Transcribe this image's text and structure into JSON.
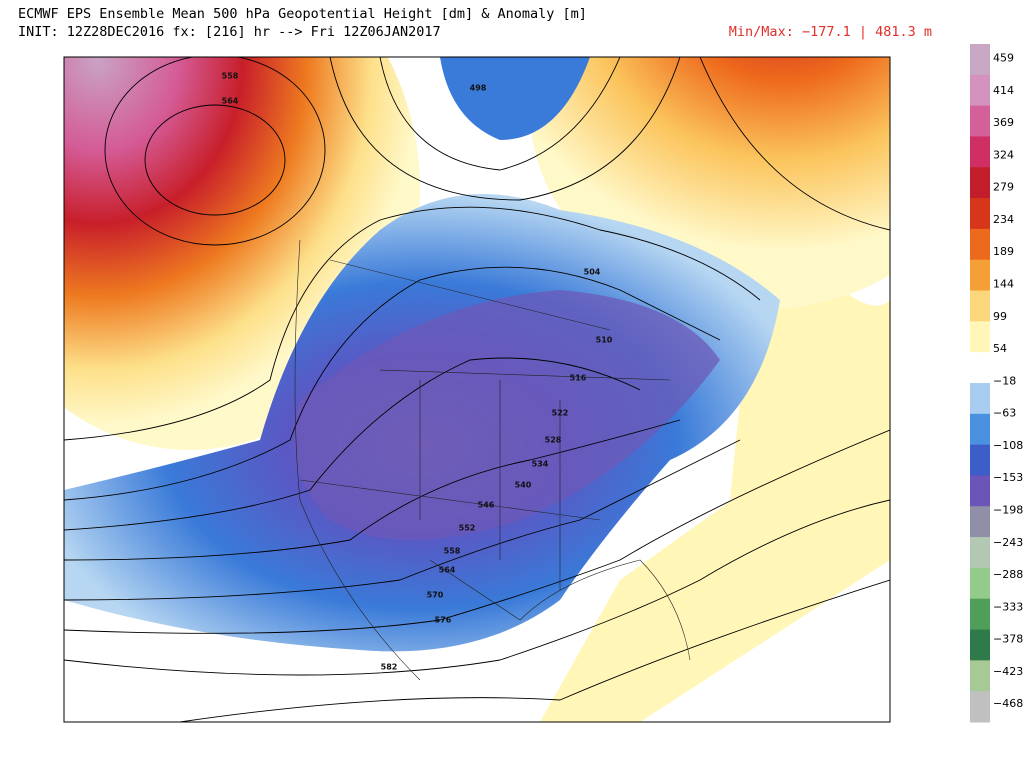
{
  "header": {
    "title": "ECMWF EPS Ensemble Mean 500 hPa Geopotential Height [dm] & Anomaly [m]",
    "init": "INIT: 12Z28DEC2016 fx: [216] hr --> Fri 12Z06JAN2017",
    "minmax": "Min/Max: −177.1 | 481.3 m"
  },
  "colorbar": {
    "labels": [
      "459",
      "414",
      "369",
      "324",
      "279",
      "234",
      "189",
      "144",
      "99",
      "54",
      "−18",
      "−63",
      "−108",
      "−153",
      "−198",
      "−243",
      "−288",
      "−333",
      "−378",
      "−423",
      "−468"
    ],
    "colors": [
      "#c8a8c4",
      "#d493bf",
      "#d4609a",
      "#cf2f62",
      "#c21d2a",
      "#d8361b",
      "#ec6a1d",
      "#f4a037",
      "#fbd67a",
      "#fff6b7",
      "#ffffff",
      "#a8cdf1",
      "#4a92e0",
      "#3d5dc8",
      "#6c55b8",
      "#8f8fa8",
      "#b3c8b3",
      "#93cb8a",
      "#4f9e5a",
      "#2f7a4a",
      "#a6c996",
      "#c0c0c0"
    ]
  },
  "contour_labels": [
    "558",
    "564",
    "498",
    "504",
    "510",
    "516",
    "522",
    "528",
    "534",
    "540",
    "546",
    "552",
    "558",
    "564",
    "570",
    "576",
    "582"
  ]
}
